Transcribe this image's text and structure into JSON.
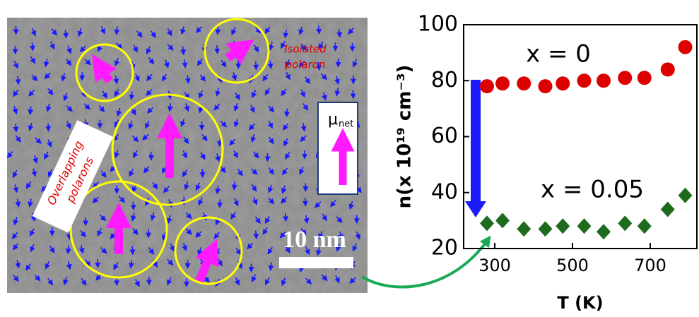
{
  "image": {
    "isolated_label": [
      "Isolated",
      "polaron"
    ],
    "overlapping_label": [
      "Overlapping",
      "polarons"
    ],
    "mu_label": "μ",
    "mu_sub": "net",
    "scale_bar": "10 nm"
  },
  "chart_data": {
    "type": "scatter",
    "x_label": "T (K)",
    "y_label": "n(x 10¹⁹ cm⁻³)",
    "xlim": [
      220,
      820
    ],
    "ylim": [
      20,
      100
    ],
    "xticks": [
      300,
      500,
      700
    ],
    "yticks": [
      20,
      40,
      60,
      80,
      100
    ],
    "annotations": [
      "x = 0",
      "x = 0.05"
    ],
    "series": [
      {
        "color": "#dd0000",
        "marker": "circle",
        "x": [
          280,
          320,
          375,
          430,
          475,
          530,
          580,
          635,
          685,
          745,
          790
        ],
        "values": [
          78,
          79,
          79,
          78,
          79,
          80,
          80,
          81,
          81,
          84,
          92
        ]
      },
      {
        "color": "#1e6b1e",
        "marker": "diamond",
        "x": [
          280,
          320,
          375,
          430,
          475,
          530,
          580,
          635,
          685,
          745,
          790
        ],
        "values": [
          29,
          30,
          27,
          27,
          28,
          28,
          26,
          29,
          28,
          34,
          39
        ]
      }
    ]
  }
}
